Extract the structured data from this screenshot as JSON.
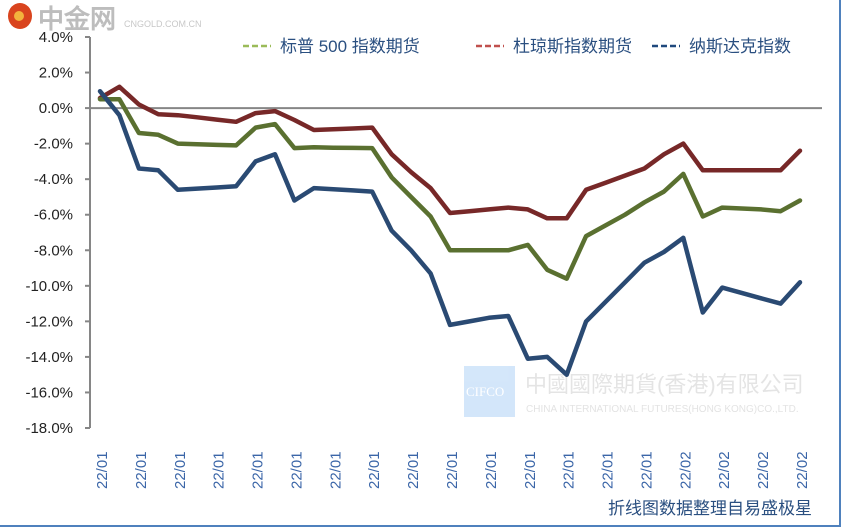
{
  "chart_data": {
    "type": "line",
    "title": "",
    "xlabel": "",
    "ylabel": "",
    "ylim": [
      -18,
      4
    ],
    "y_tick_step": 2,
    "y_tick_labels": [
      "4.0%",
      "2.0%",
      "0.0%",
      "-2.0%",
      "-4.0%",
      "-6.0%",
      "-8.0%",
      "-10.0%",
      "-12.0%",
      "-14.0%",
      "-16.0%",
      "-18.0%"
    ],
    "x_tick_labels": [
      "22/01",
      "22/01",
      "22/01",
      "22/01",
      "22/01",
      "22/01",
      "22/01",
      "22/01",
      "22/01",
      "22/01",
      "22/01",
      "22/01",
      "22/01",
      "22/01",
      "22/01",
      "22/02",
      "22/02",
      "22/02",
      "22/02"
    ],
    "grid": false,
    "legend_position": "top-right",
    "series": [
      {
        "name": "标普 500 指数期货",
        "color": "#5a7030",
        "legend_color": "#9bbb59",
        "values": [
          0.5,
          0.5,
          -1.4,
          -1.5,
          -2.0,
          -2.03,
          -2.07,
          -2.1,
          -1.1,
          -0.9,
          -2.25,
          -2.2,
          -2.23,
          -2.24,
          -2.25,
          -3.9,
          -5.0,
          -6.1,
          -8.0,
          -8.0,
          -8.0,
          -8.0,
          -7.7,
          -9.1,
          -9.6,
          -7.2,
          -6.6,
          -6.0,
          -5.3,
          -4.7,
          -3.7,
          -6.1,
          -5.6,
          -5.65,
          -5.7,
          -5.8,
          -5.2
        ]
      },
      {
        "name": "杜琼斯指数期货",
        "color": "#772828",
        "legend_color": "#c0504d",
        "values": [
          0.56,
          1.2,
          0.2,
          -0.35,
          -0.4,
          -0.52,
          -0.65,
          -0.77,
          -0.28,
          -0.17,
          -0.67,
          -1.23,
          -1.19,
          -1.15,
          -1.1,
          -2.6,
          -3.6,
          -4.5,
          -5.9,
          -5.8,
          -5.7,
          -5.6,
          -5.7,
          -6.2,
          -6.2,
          -4.6,
          -4.2,
          -3.8,
          -3.4,
          -2.6,
          -2.0,
          -3.5,
          -3.5,
          -3.5,
          -3.5,
          -3.5,
          -2.4
        ]
      },
      {
        "name": "纳斯达克指数",
        "color": "#2a4a73",
        "legend_color": "#1f497d",
        "values": [
          0.95,
          -0.4,
          -3.4,
          -3.5,
          -4.6,
          -4.53,
          -4.47,
          -4.4,
          -3.0,
          -2.6,
          -5.2,
          -4.5,
          -4.57,
          -4.63,
          -4.7,
          -6.9,
          -8.0,
          -9.3,
          -12.2,
          -12.0,
          -11.8,
          -11.7,
          -14.1,
          -14.0,
          -15.0,
          -12.0,
          -10.9,
          -9.8,
          -8.7,
          -8.1,
          -7.3,
          -11.5,
          -10.1,
          -10.4,
          -10.7,
          -11.0,
          -9.8
        ]
      }
    ]
  },
  "footer": "折线图数据整理自易盛极星",
  "watermarks": {
    "cifco_logo": "CIFCO",
    "cifco_cn": "中國國際期貨(香港)有限公司",
    "cifco_en": "CHINA INTERNATIONAL FUTURES(HONG KONG)CO.,LTD.",
    "cngold_logo": "中金网",
    "cngold_url": "CNGOLD.COM.CN"
  }
}
